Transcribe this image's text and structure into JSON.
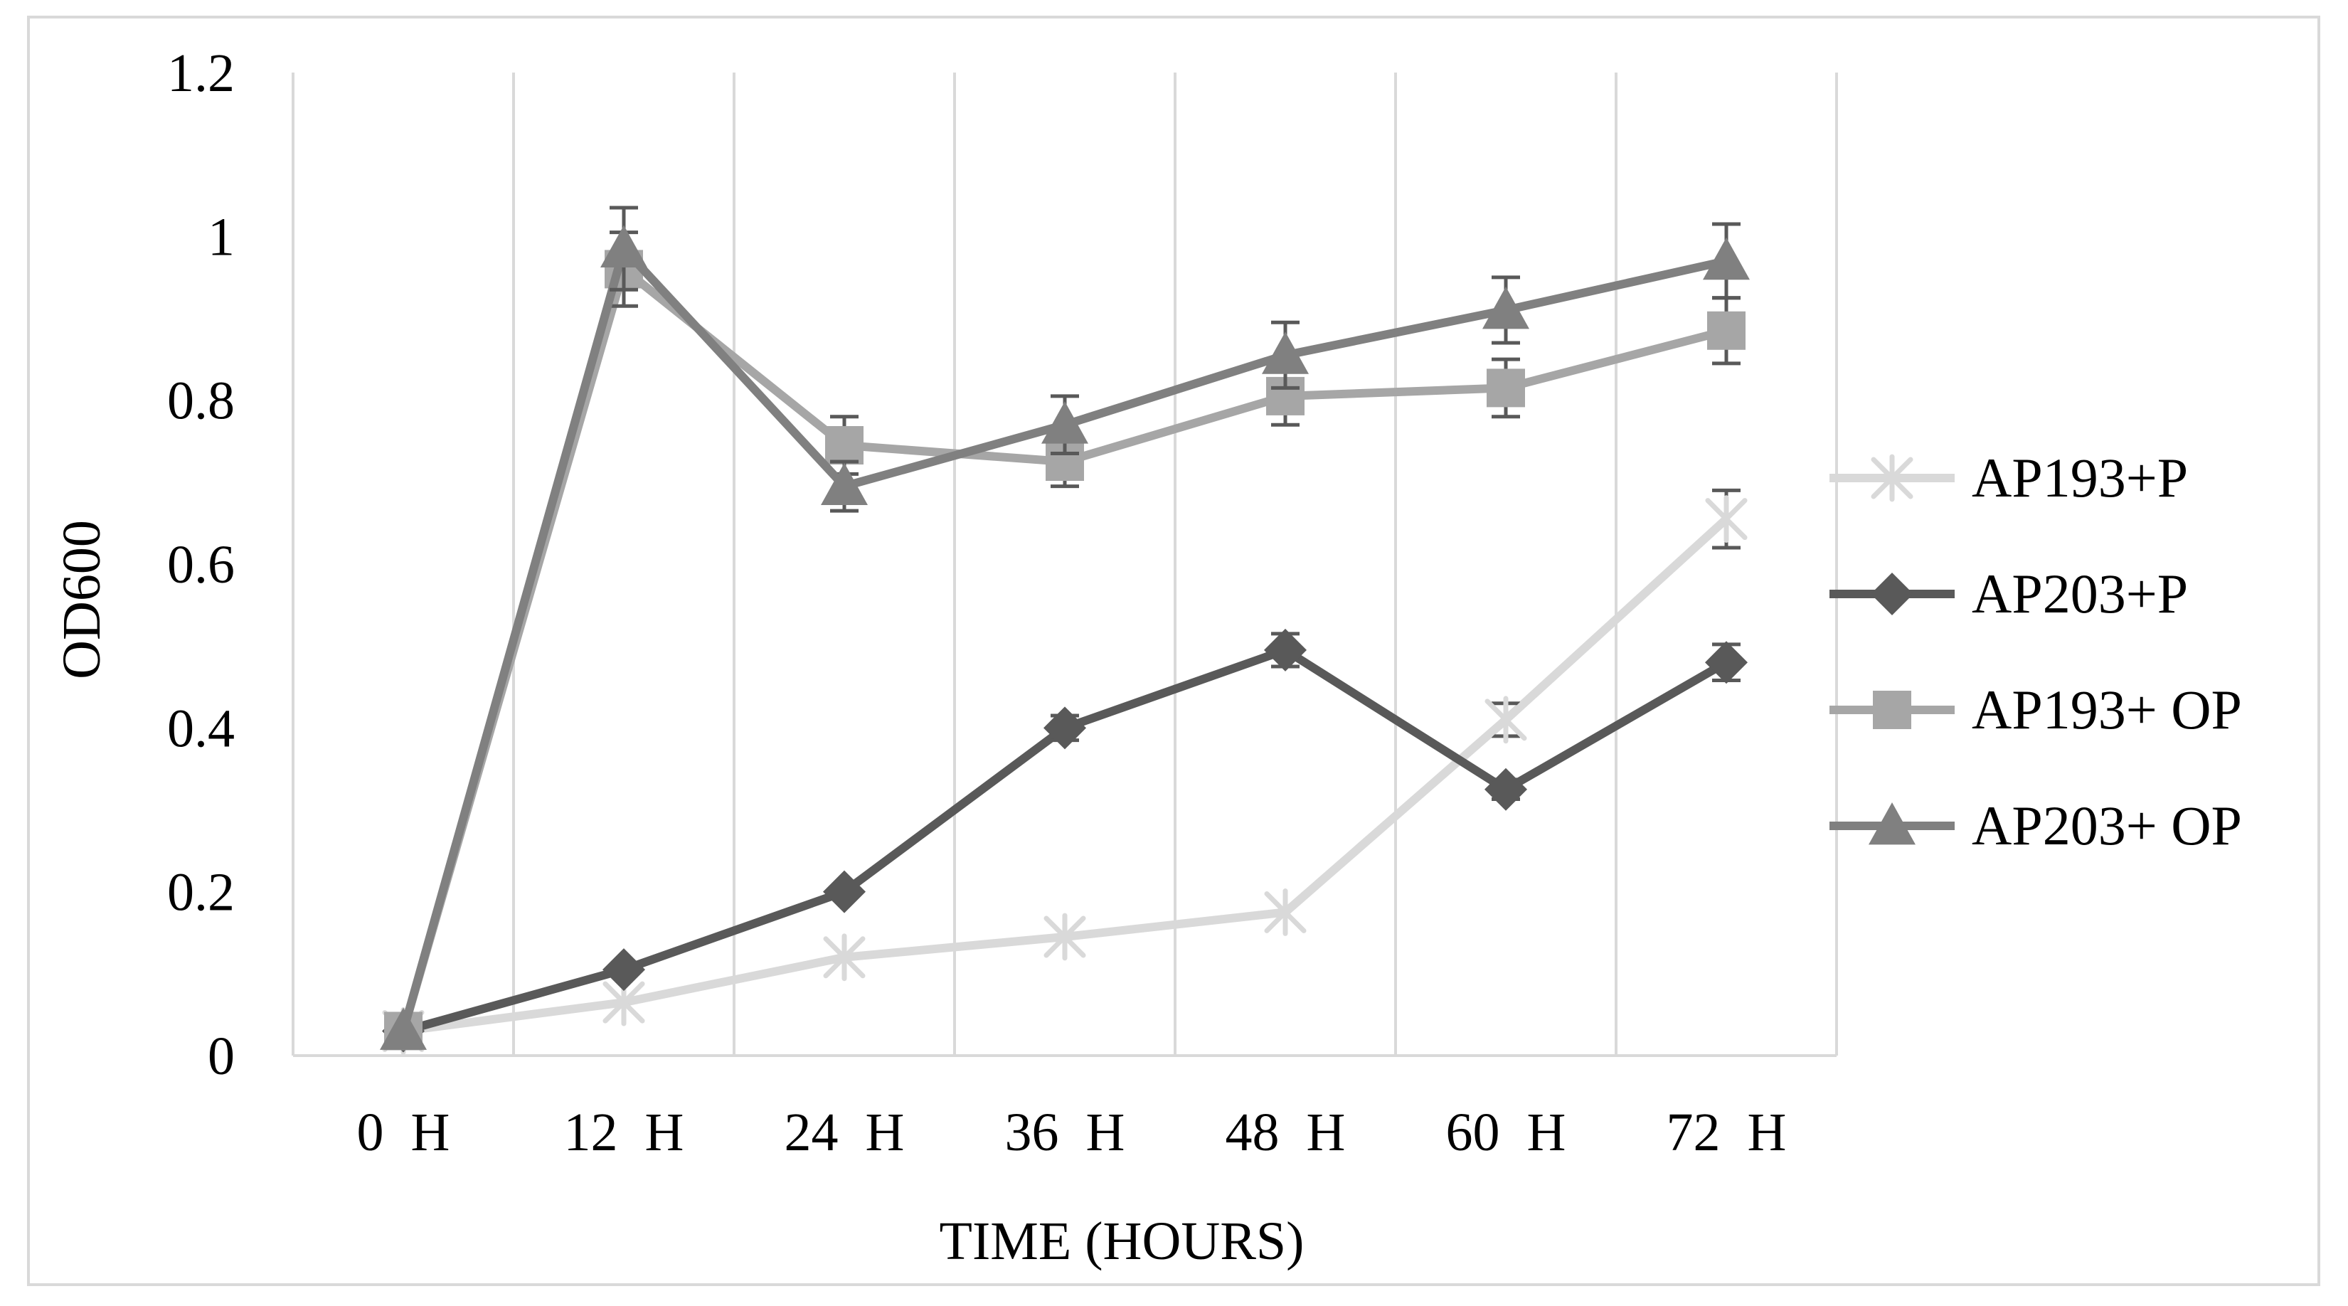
{
  "chart_data": {
    "type": "line",
    "title": "",
    "xlabel": "TIME (HOURS)",
    "ylabel": "OD600",
    "categories": [
      "0  H",
      "12  H",
      "24  H",
      "36  H",
      "48  H",
      "60  H",
      "72  H"
    ],
    "ylim": [
      0,
      1.2
    ],
    "yticks": [
      0,
      0.2,
      0.4,
      0.6,
      0.8,
      1,
      1.2
    ],
    "ytick_labels": [
      "0",
      "0.2",
      "0.4",
      "0.6",
      "0.8",
      "1",
      "1.2"
    ],
    "grid": "vertical",
    "legend_position": "right",
    "series": [
      {
        "name": "AP193+P",
        "marker": "star",
        "color": "#d9d9d9",
        "values": [
          0.03,
          0.065,
          0.12,
          0.145,
          0.175,
          0.41,
          0.655
        ],
        "errors": [
          0,
          0,
          0,
          0,
          0,
          0.02,
          0.035
        ]
      },
      {
        "name": "AP203+P",
        "marker": "diamond",
        "color": "#595959",
        "values": [
          0.03,
          0.105,
          0.2,
          0.4,
          0.495,
          0.325,
          0.48
        ],
        "errors": [
          0,
          0,
          0,
          0.015,
          0.02,
          0.012,
          0.022
        ]
      },
      {
        "name": "AP193+ OP",
        "marker": "square",
        "color": "#a6a6a6",
        "values": [
          0.03,
          0.96,
          0.745,
          0.725,
          0.805,
          0.815,
          0.885
        ],
        "errors": [
          0,
          0.045,
          0.035,
          0.03,
          0.035,
          0.035,
          0.04
        ]
      },
      {
        "name": "AP203+ OP",
        "marker": "triangle",
        "color": "#808080",
        "values": [
          0.03,
          0.985,
          0.695,
          0.77,
          0.855,
          0.91,
          0.97
        ],
        "errors": [
          0,
          0.05,
          0.03,
          0.035,
          0.04,
          0.04,
          0.045
        ]
      }
    ]
  }
}
